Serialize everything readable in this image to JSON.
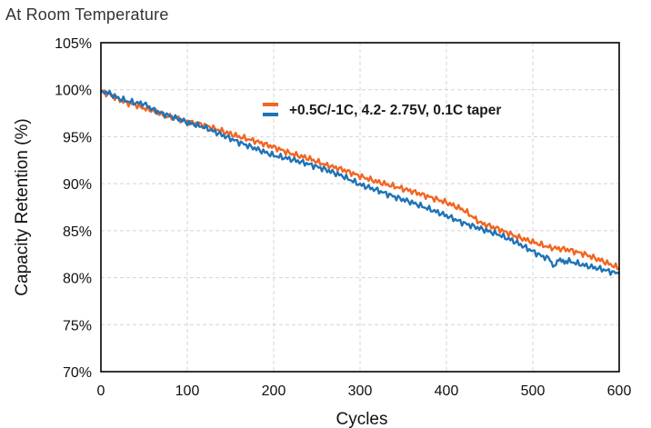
{
  "heading": "At Room Temperature",
  "chart_data": {
    "type": "line",
    "title": "",
    "xlabel": "Cycles",
    "ylabel": "Capacity Retention (%)",
    "xlim": [
      0,
      600
    ],
    "ylim": [
      70,
      105
    ],
    "x_ticks": [
      0,
      100,
      200,
      300,
      400,
      500,
      600
    ],
    "y_ticks": [
      70,
      75,
      80,
      85,
      90,
      95,
      100,
      105
    ],
    "x_tick_labels": [
      "0",
      "100",
      "200",
      "300",
      "400",
      "500",
      "600"
    ],
    "y_tick_labels": [
      "70%",
      "75%",
      "80%",
      "85%",
      "90%",
      "95%",
      "100%",
      "105%"
    ],
    "grid": true,
    "legend_placement": "top-right",
    "legend_label": "+0.5C/-1C, 4.2- 2.75V, 0.1C taper",
    "series": [
      {
        "color": "#F26522",
        "x": [
          0,
          10,
          20,
          30,
          40,
          50,
          60,
          70,
          80,
          90,
          100,
          120,
          140,
          160,
          180,
          200,
          220,
          240,
          260,
          280,
          300,
          320,
          340,
          360,
          380,
          400,
          420,
          440,
          460,
          480,
          500,
          520,
          540,
          560,
          580,
          600
        ],
        "values": [
          99.8,
          99.5,
          99.0,
          98.6,
          98.4,
          98.0,
          97.8,
          97.4,
          97.1,
          96.9,
          96.6,
          96.2,
          95.6,
          95.0,
          94.5,
          93.9,
          93.2,
          92.7,
          92.0,
          91.5,
          90.8,
          90.2,
          89.7,
          89.2,
          88.6,
          88.0,
          87.2,
          85.8,
          85.2,
          84.4,
          83.8,
          83.2,
          83.0,
          82.5,
          81.8,
          81.0
        ]
      },
      {
        "color": "#1F73B7",
        "x": [
          0,
          10,
          20,
          30,
          40,
          50,
          60,
          70,
          80,
          90,
          100,
          120,
          140,
          160,
          180,
          200,
          220,
          240,
          260,
          280,
          300,
          320,
          340,
          360,
          380,
          400,
          420,
          440,
          460,
          480,
          500,
          510,
          520,
          525,
          530,
          535,
          540,
          560,
          580,
          600
        ],
        "values": [
          99.9,
          99.6,
          99.1,
          98.8,
          98.6,
          98.5,
          97.9,
          97.5,
          97.2,
          96.9,
          96.5,
          96.0,
          95.2,
          94.4,
          93.7,
          93.0,
          92.6,
          92.1,
          91.5,
          90.8,
          89.9,
          89.3,
          88.6,
          88.0,
          87.3,
          86.6,
          85.8,
          85.2,
          84.6,
          83.8,
          82.8,
          82.3,
          82.0,
          81.0,
          82.1,
          81.6,
          81.8,
          81.3,
          80.9,
          80.4
        ]
      }
    ]
  }
}
